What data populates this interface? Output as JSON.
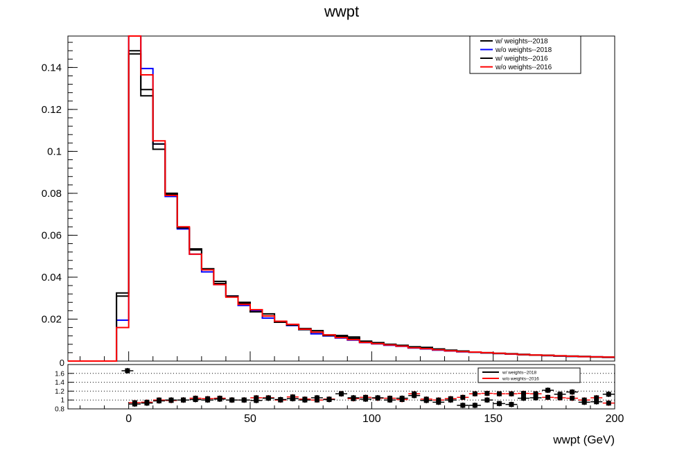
{
  "chart_data": [
    {
      "type": "step-histogram",
      "title": "wwpt",
      "xlabel": "",
      "ylabel": "",
      "xlim": [
        -25,
        200
      ],
      "ylim": [
        0,
        0.155
      ],
      "yticks": [
        0,
        0.02,
        0.04,
        0.06,
        0.08,
        0.1,
        0.12,
        0.14
      ],
      "ytick_labels": [
        "0",
        "0.02",
        "0.04",
        "0.06",
        "0.08",
        "0.1",
        "0.12",
        "0.14"
      ],
      "bin_edges": [
        -25,
        -20,
        -15,
        -10,
        -5,
        0,
        5,
        10,
        15,
        20,
        25,
        30,
        35,
        40,
        45,
        50,
        55,
        60,
        65,
        70,
        75,
        80,
        85,
        90,
        95,
        100,
        105,
        110,
        115,
        120,
        125,
        130,
        135,
        140,
        145,
        150,
        155,
        160,
        165,
        170,
        175,
        180,
        185,
        190,
        195,
        200
      ],
      "legend_position": "top-right",
      "series": [
        {
          "name": "w/ weights--2018",
          "color": "#000000",
          "values": [
            0,
            0,
            0,
            0,
            0.0325,
            0.148,
            0.1265,
            0.101,
            0.08,
            0.0635,
            0.0535,
            0.044,
            0.038,
            0.031,
            0.028,
            0.0235,
            0.0225,
            0.019,
            0.017,
            0.0155,
            0.0145,
            0.0125,
            0.0122,
            0.0115,
            0.0095,
            0.0088,
            0.008,
            0.0075,
            0.0068,
            0.0065,
            0.0058,
            0.0052,
            0.0048,
            0.0043,
            0.004,
            0.0037,
            0.0035,
            0.0032,
            0.0029,
            0.0028,
            0.0025,
            0.0024,
            0.0022,
            0.002,
            0.0019
          ]
        },
        {
          "name": "w/o weights--2018",
          "color": "#0000ff",
          "values": [
            0,
            0,
            0,
            0,
            0.0195,
            0.155,
            0.1395,
            0.1035,
            0.0785,
            0.063,
            0.051,
            0.0425,
            0.0365,
            0.031,
            0.0265,
            0.024,
            0.0205,
            0.0185,
            0.017,
            0.015,
            0.013,
            0.012,
            0.011,
            0.01,
            0.0088,
            0.0082,
            0.0075,
            0.007,
            0.0062,
            0.0058,
            0.0052,
            0.0048,
            0.0044,
            0.0042,
            0.0039,
            0.0036,
            0.0033,
            0.003,
            0.0028,
            0.0026,
            0.0024,
            0.0022,
            0.0021,
            0.002,
            0.0018
          ]
        },
        {
          "name": "w/ weights--2016",
          "color": "#000000",
          "values": [
            0,
            0,
            0,
            0,
            0.031,
            0.1465,
            0.1295,
            0.1035,
            0.0795,
            0.0635,
            0.053,
            0.044,
            0.037,
            0.031,
            0.0275,
            0.0235,
            0.0215,
            0.0185,
            0.0172,
            0.015,
            0.0137,
            0.0122,
            0.0117,
            0.0108,
            0.0092,
            0.0085,
            0.0078,
            0.0072,
            0.0065,
            0.006,
            0.0055,
            0.0051,
            0.0046,
            0.0042,
            0.0039,
            0.0036,
            0.0034,
            0.003,
            0.0028,
            0.0026,
            0.0024,
            0.0022,
            0.0021,
            0.0019,
            0.0018
          ]
        },
        {
          "name": "w/o weights--2016",
          "color": "#ff0000",
          "values": [
            0,
            0,
            0,
            0,
            0.016,
            0.155,
            0.1365,
            0.105,
            0.079,
            0.064,
            0.051,
            0.0435,
            0.0365,
            0.0305,
            0.027,
            0.0245,
            0.0215,
            0.019,
            0.0175,
            0.0152,
            0.0138,
            0.0125,
            0.0112,
            0.0102,
            0.0089,
            0.0083,
            0.0077,
            0.0071,
            0.0063,
            0.0059,
            0.0054,
            0.0049,
            0.0045,
            0.0043,
            0.004,
            0.0037,
            0.0034,
            0.0031,
            0.0029,
            0.0027,
            0.0025,
            0.0023,
            0.0021,
            0.002,
            0.0019
          ]
        }
      ]
    },
    {
      "type": "ratio-points",
      "xlabel": "wwpt (GeV)",
      "xlim": [
        -25,
        200
      ],
      "ylim": [
        0.8,
        1.8
      ],
      "xticks": [
        0,
        50,
        100,
        150,
        200
      ],
      "xtick_labels": [
        "0",
        "50",
        "100",
        "150",
        "200"
      ],
      "yticks": [
        0.8,
        1,
        1.2,
        1.4,
        1.6
      ],
      "ytick_labels": [
        "0.8",
        "1",
        "1.2",
        "1.4",
        "1.6"
      ],
      "yaxis_top_label": "0",
      "grid_y": [
        1,
        1.2,
        1.4,
        1.6
      ],
      "legend_position": "top-right",
      "series": [
        {
          "name": "w/ weights--2018",
          "color": "#000000",
          "x": [
            -0.5,
            2.5,
            7.5,
            12.5,
            17.5,
            22.5,
            27.5,
            32.5,
            37.5,
            42.5,
            47.5,
            52.5,
            57.5,
            62.5,
            67.5,
            72.5,
            77.5,
            82.5,
            87.5,
            92.5,
            97.5,
            102.5,
            107.5,
            112.5,
            117.5,
            122.5,
            127.5,
            132.5,
            137.5,
            142.5,
            147.5,
            152.5,
            157.5,
            162.5,
            167.5,
            172.5,
            177.5,
            182.5,
            187.5,
            192.5,
            197.5
          ],
          "values": [
            1.66,
            0.91,
            0.93,
            0.98,
            1.0,
            1.0,
            1.01,
            1.0,
            1.02,
            1.0,
            1.0,
            0.99,
            1.04,
            1.01,
            1.03,
            1.0,
            1.05,
            1.01,
            1.14,
            1.05,
            1.02,
            1.05,
            1.0,
            1.04,
            1.1,
            0.99,
            0.95,
            1.0,
            0.88,
            0.88,
            1.0,
            0.92,
            0.9,
            1.04,
            1.05,
            1.22,
            1.13,
            1.18,
            0.95,
            0.96,
            1.13
          ]
        },
        {
          "name": "w/o weights--2016",
          "color": "#ff0000",
          "x": [
            2.5,
            7.5,
            12.5,
            17.5,
            22.5,
            27.5,
            32.5,
            37.5,
            42.5,
            47.5,
            52.5,
            57.5,
            62.5,
            67.5,
            72.5,
            77.5,
            82.5,
            87.5,
            92.5,
            97.5,
            102.5,
            107.5,
            112.5,
            117.5,
            122.5,
            127.5,
            132.5,
            137.5,
            142.5,
            147.5,
            152.5,
            157.5,
            162.5,
            167.5,
            172.5,
            177.5,
            182.5,
            187.5,
            192.5,
            197.5
          ],
          "values": [
            0.94,
            0.95,
            1.0,
            0.99,
            1.0,
            1.04,
            1.03,
            1.04,
            1.0,
            1.0,
            1.05,
            1.05,
            1.0,
            1.07,
            1.02,
            1.0,
            1.02,
            1.14,
            1.03,
            1.06,
            1.04,
            1.04,
            1.01,
            1.14,
            1.02,
            1.0,
            1.03,
            1.06,
            1.14,
            1.15,
            1.14,
            1.14,
            1.15,
            1.14,
            1.06,
            1.05,
            1.04,
            1.0,
            1.05,
            0.93
          ]
        }
      ]
    }
  ]
}
